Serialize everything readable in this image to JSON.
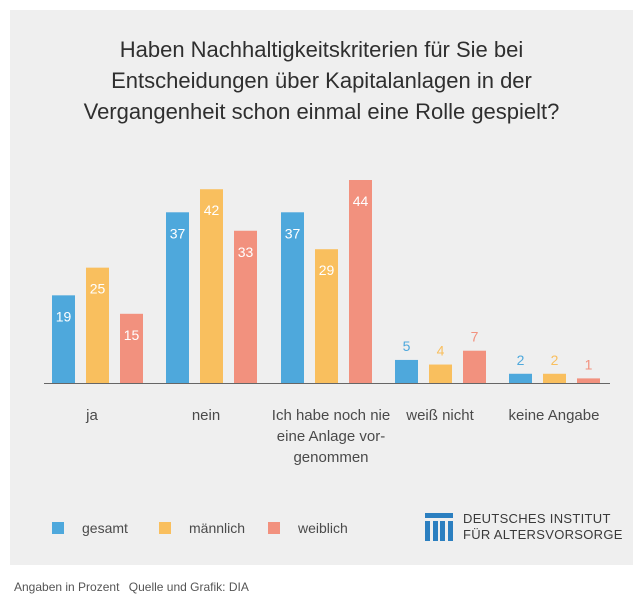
{
  "title": {
    "line1": "Haben Nachhaltigkeitskriterien für Sie bei",
    "line2": "Entscheidungen über Kapitalanlagen in der",
    "line3": "Vergangenheit schon einmal eine Rolle gespielt?"
  },
  "categories": [
    {
      "lines": [
        "ja"
      ]
    },
    {
      "lines": [
        "nein"
      ]
    },
    {
      "lines": [
        "Ich habe noch nie",
        "eine Anlage vor-",
        "genommen"
      ]
    },
    {
      "lines": [
        "weiß nicht"
      ]
    },
    {
      "lines": [
        "keine Angabe"
      ]
    }
  ],
  "legend": {
    "gesamt": "gesamt",
    "maennlich": "männlich",
    "weiblich": "weiblich"
  },
  "logo": {
    "line1": "DEUTSCHES INSTITUT",
    "line2": "FÜR ALTERSVORSORGE"
  },
  "footer": {
    "units": "Angaben in Prozent",
    "source": "Quelle und Grafik: DIA"
  },
  "colors": {
    "gesamt": "#4ea8dc",
    "maennlich": "#f9bf5e",
    "weiblich": "#f2917e",
    "logo": "#2b7fc0"
  },
  "chart_data": {
    "type": "bar",
    "categories": [
      "ja",
      "nein",
      "Ich habe noch nie eine Anlage vorgenommen",
      "weiß nicht",
      "keine Angabe"
    ],
    "series": [
      {
        "name": "gesamt",
        "values": [
          19,
          37,
          37,
          5,
          2
        ]
      },
      {
        "name": "männlich",
        "values": [
          25,
          42,
          29,
          4,
          2
        ]
      },
      {
        "name": "weiblich",
        "values": [
          15,
          33,
          44,
          7,
          1
        ]
      }
    ],
    "title": "Haben Nachhaltigkeitskriterien für Sie bei Entscheidungen über Kapitalanlagen in der Vergangenheit schon einmal eine Rolle gespielt?",
    "ylim": [
      0,
      44
    ],
    "grid": false,
    "legend_position": "bottom-left"
  }
}
